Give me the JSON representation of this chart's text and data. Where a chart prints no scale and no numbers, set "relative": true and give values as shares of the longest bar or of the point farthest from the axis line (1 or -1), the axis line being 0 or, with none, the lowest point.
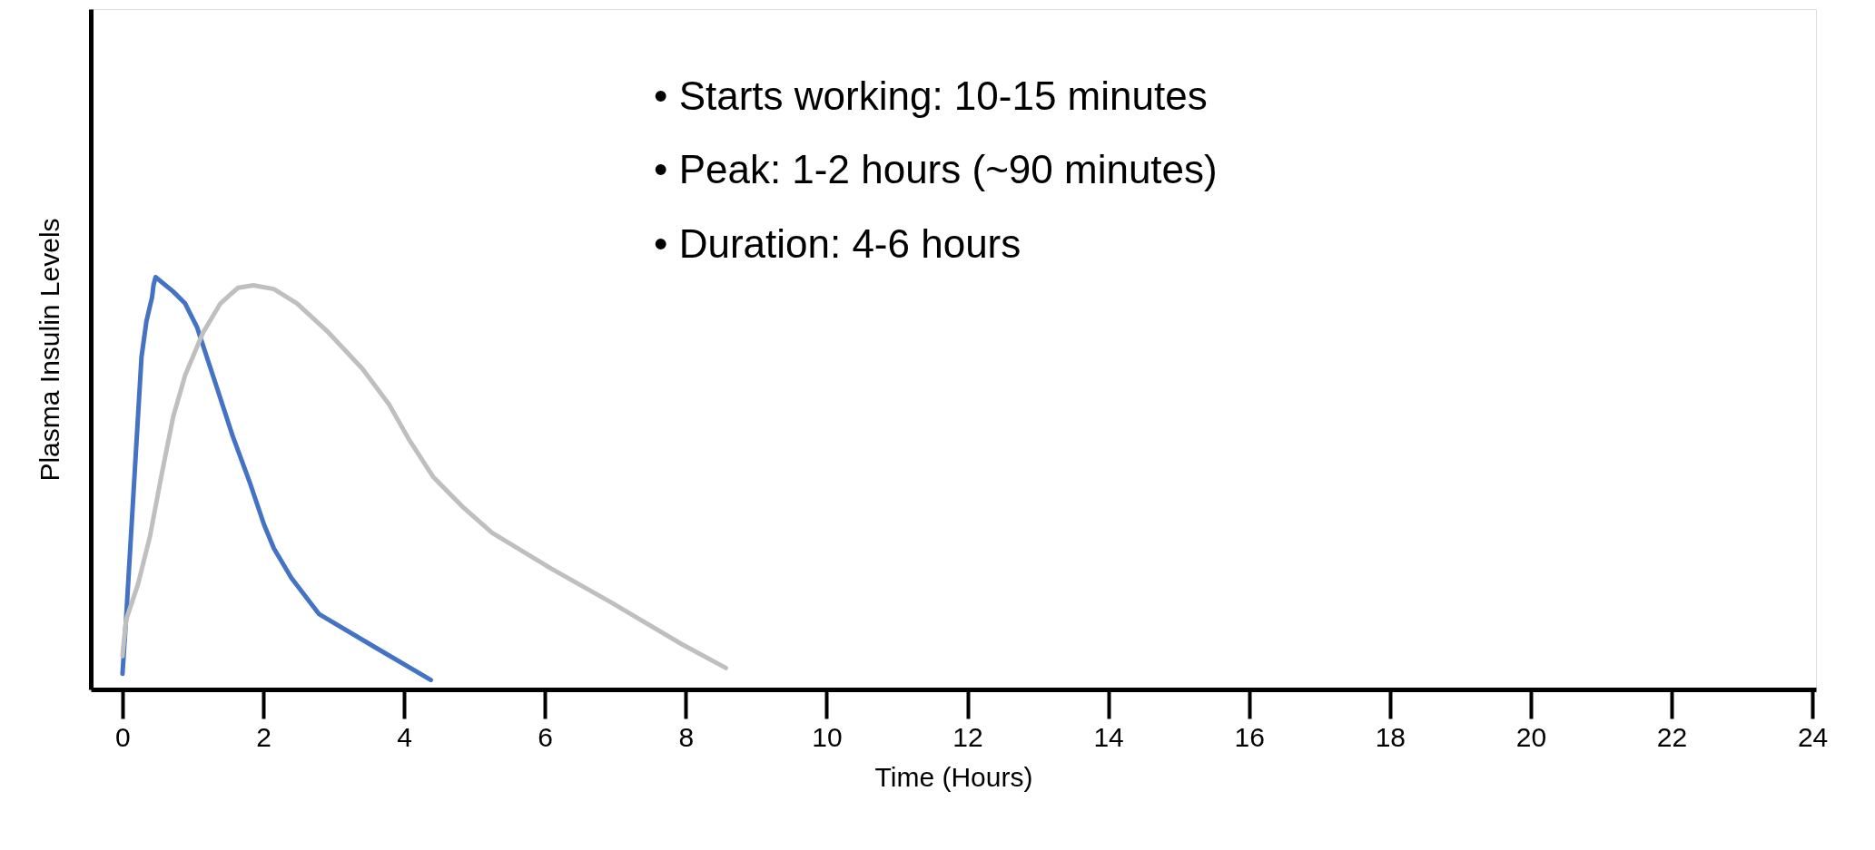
{
  "chart_data": {
    "type": "line",
    "relative": true,
    "xlabel": "Time (Hours)",
    "ylabel": "Plasma Insulin Levels",
    "xlim": [
      -0.45,
      24.05
    ],
    "xticks": [
      0,
      2,
      4,
      6,
      8,
      10,
      12,
      14,
      16,
      18,
      20,
      22,
      24
    ],
    "grid": false,
    "legend": false,
    "marker": "none",
    "line_style": "solid",
    "annotations": [
      "• Starts working: 10-15 minutes",
      "• Peak: 1-2 hours (~90 minutes)",
      "• Duration: 4-6 hours"
    ],
    "series": [
      {
        "color": "#4472c4",
        "x": [
          0,
          0.05,
          0.12,
          0.17,
          0.22,
          0.27,
          0.34,
          0.42,
          0.44,
          0.47,
          0.72,
          0.89,
          1.06,
          1.31,
          1.56,
          1.81,
          2.01,
          2.15,
          2.4,
          2.79,
          3.57,
          4.38
        ],
        "values": [
          0.038,
          0.168,
          0.371,
          0.516,
          0.661,
          0.806,
          0.893,
          0.951,
          0.98,
          1,
          0.965,
          0.936,
          0.878,
          0.748,
          0.617,
          0.501,
          0.4,
          0.342,
          0.27,
          0.183,
          0.104,
          0.023
        ]
      },
      {
        "color": "#bfbfbf",
        "x": [
          0,
          0.05,
          0.22,
          0.39,
          0.55,
          0.72,
          0.89,
          1.14,
          1.39,
          1.64,
          1.86,
          2.15,
          2.48,
          2.9,
          3.41,
          3.79,
          4.08,
          4.41,
          4.83,
          5.25,
          6.09,
          6.93,
          7.94,
          8.57
        ],
        "values": [
          0.081,
          0.168,
          0.255,
          0.371,
          0.516,
          0.661,
          0.762,
          0.864,
          0.936,
          0.974,
          0.98,
          0.971,
          0.936,
          0.87,
          0.777,
          0.69,
          0.603,
          0.516,
          0.443,
          0.38,
          0.293,
          0.212,
          0.11,
          0.052
        ]
      }
    ]
  }
}
